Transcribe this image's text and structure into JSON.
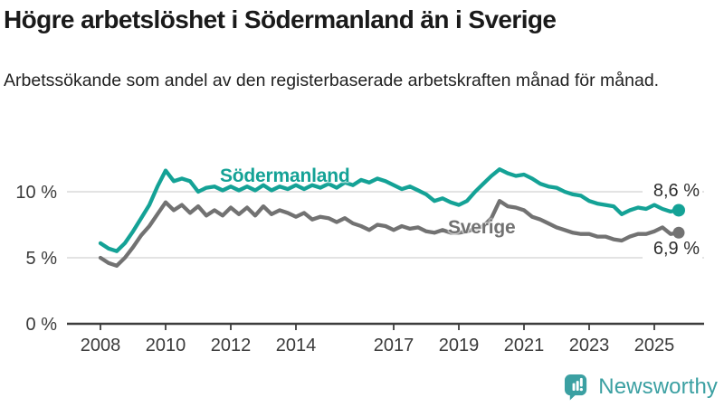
{
  "title": "Högre arbetslöshet i Södermanland än i Sverige",
  "subtitle": "Arbetssökande som andel av den registerbaserade arbetskraften månad för månad.",
  "chart_data": {
    "type": "line",
    "x_start": 2008.0,
    "x_step_years": 0.25,
    "x_end": 2025.75,
    "ylim": [
      0,
      12.5
    ],
    "grid": "horizontal-only",
    "yticks": [
      {
        "value": 0,
        "label": "0 %"
      },
      {
        "value": 5,
        "label": "5 %"
      },
      {
        "value": 10,
        "label": "10 %"
      }
    ],
    "xticks": [
      2008,
      2010,
      2012,
      2014,
      2017,
      2019,
      2021,
      2023,
      2025
    ],
    "series": [
      {
        "name": "Södermanland",
        "color": "#14a296",
        "end_label": "8,6 %",
        "end_value": 8.6,
        "values": [
          6.1,
          5.7,
          5.5,
          6.1,
          7.0,
          8.0,
          9.0,
          10.4,
          11.6,
          10.8,
          11.0,
          10.8,
          10.0,
          10.3,
          10.4,
          10.1,
          10.4,
          10.1,
          10.4,
          10.1,
          10.5,
          10.1,
          10.4,
          10.2,
          10.5,
          10.2,
          10.5,
          10.3,
          10.6,
          10.3,
          10.7,
          10.5,
          10.9,
          10.7,
          11.0,
          10.8,
          10.5,
          10.2,
          10.4,
          10.1,
          9.8,
          9.3,
          9.5,
          9.2,
          9.0,
          9.3,
          10.0,
          10.6,
          11.2,
          11.7,
          11.4,
          11.2,
          11.3,
          11.0,
          10.6,
          10.4,
          10.3,
          10.0,
          9.8,
          9.7,
          9.3,
          9.1,
          9.0,
          8.9,
          8.3,
          8.6,
          8.8,
          8.7,
          9.0,
          8.7,
          8.5,
          8.6
        ]
      },
      {
        "name": "Sverige",
        "color": "#727272",
        "end_label": "6,9 %",
        "end_value": 6.9,
        "values": [
          5.0,
          4.6,
          4.4,
          5.0,
          5.8,
          6.7,
          7.4,
          8.3,
          9.2,
          8.6,
          9.0,
          8.4,
          8.9,
          8.2,
          8.6,
          8.2,
          8.8,
          8.3,
          8.8,
          8.2,
          8.9,
          8.3,
          8.6,
          8.4,
          8.1,
          8.4,
          7.9,
          8.1,
          8.0,
          7.7,
          8.0,
          7.6,
          7.4,
          7.1,
          7.5,
          7.4,
          7.1,
          7.4,
          7.2,
          7.3,
          7.0,
          6.9,
          7.1,
          6.9,
          6.9,
          7.0,
          7.2,
          7.4,
          8.0,
          9.3,
          8.9,
          8.8,
          8.6,
          8.1,
          7.9,
          7.6,
          7.3,
          7.1,
          6.9,
          6.8,
          6.8,
          6.6,
          6.6,
          6.4,
          6.3,
          6.6,
          6.8,
          6.8,
          7.0,
          7.3,
          6.8,
          6.9
        ]
      }
    ],
    "colors": {
      "gridline": "#dadada",
      "axis": "#3d3d3d",
      "tick_label": "#3a3a3a"
    }
  },
  "branding": {
    "logo_text": "Newsworthy",
    "logo_color": "#3ba0a2",
    "logo_icon": "bar-chart-speech-bubble"
  }
}
